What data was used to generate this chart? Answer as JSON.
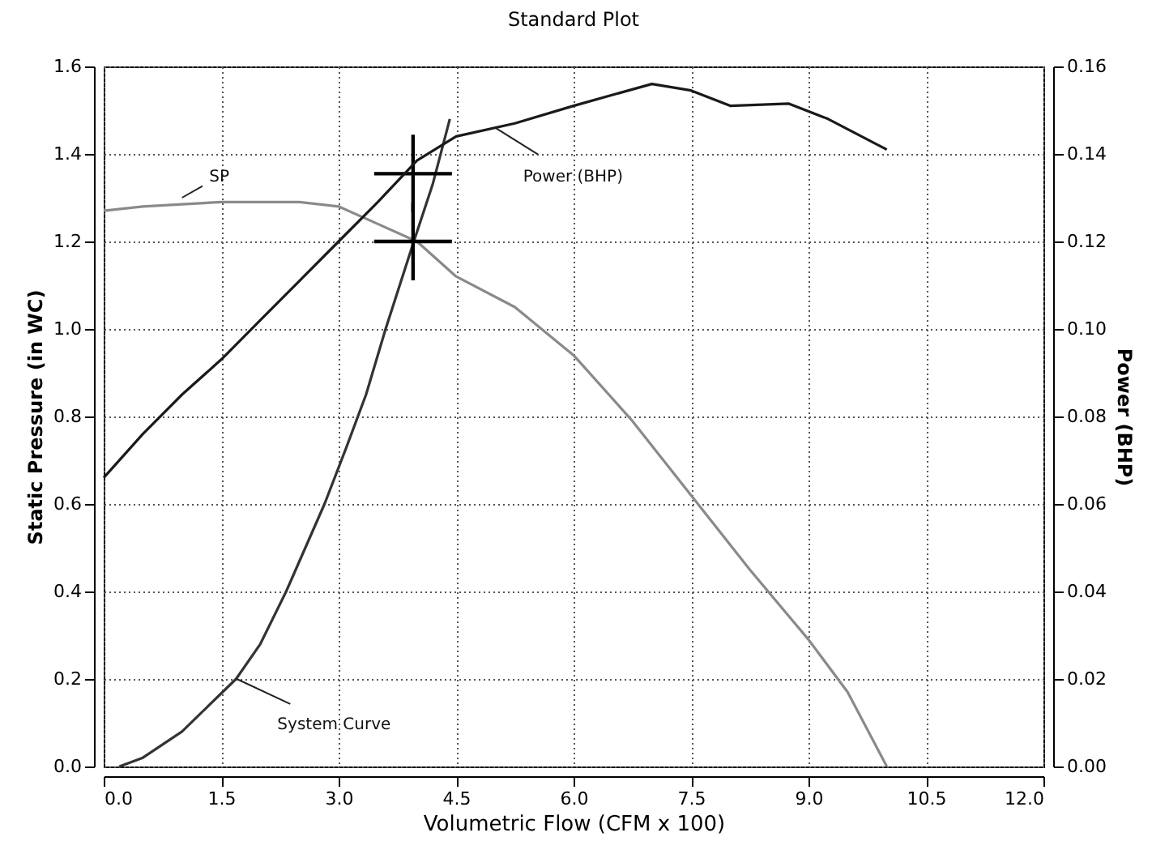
{
  "chart_data": {
    "type": "line",
    "title": "Standard Plot",
    "xlabel": "Volumetric Flow (CFM x 100)",
    "ylabel": "Static Pressure (in WC)",
    "y2label": "Power (BHP)",
    "xlim": [
      0,
      12
    ],
    "xticks": [
      {
        "value": 0,
        "label": "0.0"
      },
      {
        "value": 1.5,
        "label": "1.5"
      },
      {
        "value": 3,
        "label": "3.0"
      },
      {
        "value": 4.5,
        "label": "4.5"
      },
      {
        "value": 6,
        "label": "6.0"
      },
      {
        "value": 7.5,
        "label": "7.5"
      },
      {
        "value": 9,
        "label": "9.0"
      },
      {
        "value": 10.5,
        "label": "10.5"
      },
      {
        "value": 12,
        "label": "12.0"
      }
    ],
    "ylim": [
      0,
      1.6
    ],
    "yticks": [
      {
        "value": 0,
        "label": "0.0"
      },
      {
        "value": 0.2,
        "label": "0.2"
      },
      {
        "value": 0.4,
        "label": "0.4"
      },
      {
        "value": 0.6,
        "label": "0.6"
      },
      {
        "value": 0.8,
        "label": "0.8"
      },
      {
        "value": 1,
        "label": "1.0"
      },
      {
        "value": 1.2,
        "label": "1.2"
      },
      {
        "value": 1.4,
        "label": "1.4"
      },
      {
        "value": 1.6,
        "label": "1.6"
      }
    ],
    "y2lim": [
      0,
      0.16
    ],
    "y2ticks": [
      {
        "value": 0,
        "label": "0.00"
      },
      {
        "value": 0.02,
        "label": "0.02"
      },
      {
        "value": 0.04,
        "label": "0.04"
      },
      {
        "value": 0.06,
        "label": "0.06"
      },
      {
        "value": 0.08,
        "label": "0.08"
      },
      {
        "value": 0.1,
        "label": "0.10"
      },
      {
        "value": 0.12,
        "label": "0.12"
      },
      {
        "value": 0.14,
        "label": "0.14"
      },
      {
        "value": 0.16,
        "label": "0.16"
      }
    ],
    "grid": true,
    "series": [
      {
        "type": "line",
        "color": "#8a8a8a",
        "x": [
          0,
          0.5,
          1,
          1.5,
          2,
          2.5,
          3,
          3.5,
          4,
          4.5,
          5.25,
          6,
          6.75,
          7.5,
          8.25,
          9,
          9.5,
          10
        ],
        "values": [
          1.27,
          1.28,
          1.285,
          1.29,
          1.29,
          1.29,
          1.28,
          1.24,
          1.2,
          1.12,
          1.05,
          0.94,
          0.79,
          0.62,
          0.45,
          0.29,
          0.17,
          0
        ]
      },
      {
        "type": "line",
        "color": "#333333",
        "x": [
          0.2,
          0.5,
          1,
          1.69,
          2,
          2.33,
          2.82,
          3.1,
          3.35,
          3.6,
          3.96,
          4.2,
          4.42
        ],
        "values": [
          0,
          0.02,
          0.08,
          0.2,
          0.28,
          0.4,
          0.6,
          0.73,
          0.85,
          1,
          1.2,
          1.33,
          1.48
        ]
      },
      {
        "type": "line",
        "axis": "y2",
        "color": "#1a1a1a",
        "x": [
          0,
          0.5,
          1,
          1.5,
          2,
          2.5,
          3,
          3.5,
          4,
          4.5,
          5.25,
          6,
          7,
          7.5,
          8,
          8.75,
          9.25,
          10
        ],
        "values": [
          0.066,
          0.076,
          0.085,
          0.093,
          0.102,
          0.111,
          0.12,
          0.129,
          0.1385,
          0.144,
          0.147,
          0.151,
          0.156,
          0.1545,
          0.151,
          0.1515,
          0.148,
          0.141
        ]
      },
      {
        "type": "scatter",
        "marker": "cross",
        "color": "#000000",
        "x": [
          3.95,
          3.95
        ],
        "values": [
          1.355,
          1.2
        ]
      }
    ],
    "annotations": [
      {
        "text": "SP",
        "x": 1,
        "y": 1.3
      },
      {
        "text": "Power (BHP)",
        "x": 5,
        "y": 1.46
      },
      {
        "text": "System Curve",
        "x": 1.7,
        "y": 0.2
      }
    ]
  }
}
